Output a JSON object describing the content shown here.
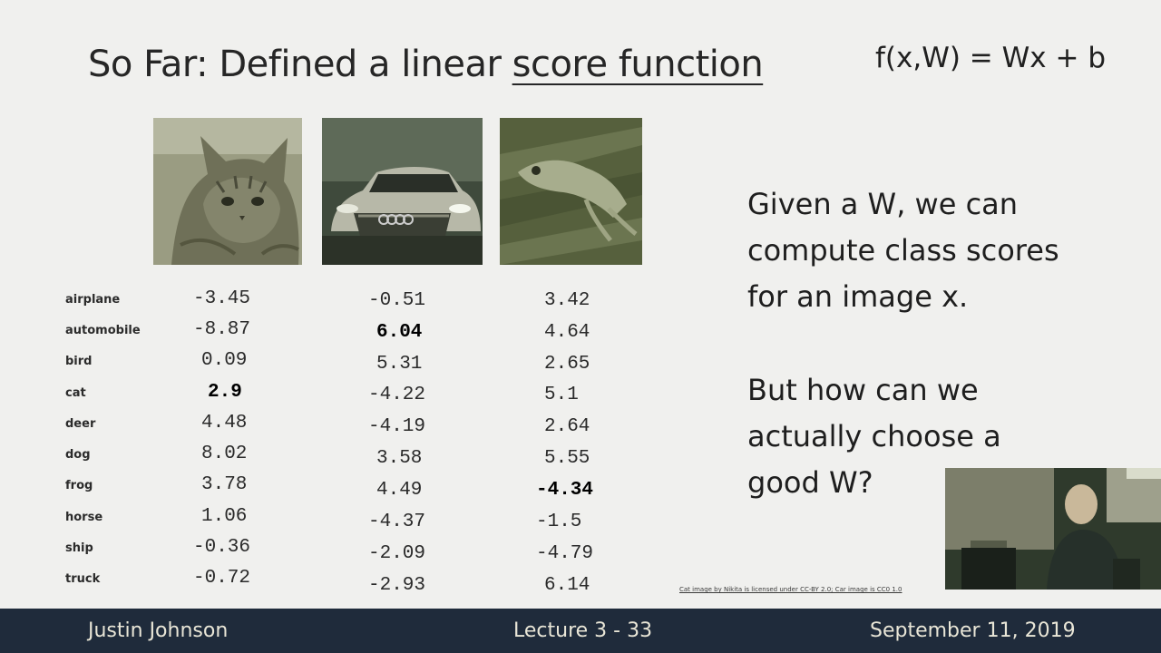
{
  "slide": {
    "title_prefix": "So Far: Defined a linear ",
    "title_emphasis": "score function",
    "formula": "f(x,W) = Wx + b"
  },
  "images": [
    {
      "name": "cat",
      "icon": "cat-photo"
    },
    {
      "name": "car",
      "icon": "car-photo"
    },
    {
      "name": "frog",
      "icon": "frog-photo"
    }
  ],
  "score_table": {
    "classes": [
      "airplane",
      "automobile",
      "bird",
      "cat",
      "deer",
      "dog",
      "frog",
      "horse",
      "ship",
      "truck"
    ],
    "cat_scores": [
      "-3.45",
      "-8.87",
      "0.09",
      "2.9",
      "4.48",
      "8.02",
      "3.78",
      "1.06",
      "-0.36",
      "-0.72"
    ],
    "car_scores": [
      "-0.51",
      "6.04",
      "5.31",
      "-4.22",
      "-4.19",
      "3.58",
      "4.49",
      "-4.37",
      "-2.09",
      "-2.93"
    ],
    "frog_scores": [
      "3.42",
      "4.64",
      "2.65",
      "5.1",
      "2.64",
      "5.55",
      "-4.34",
      "-1.5",
      "-4.79",
      "6.14"
    ],
    "highlighted": {
      "cat": 3,
      "car": 1,
      "frog": 6
    }
  },
  "side_text": {
    "para1": [
      "Given a W, we can",
      "compute class scores",
      "for an image x."
    ],
    "para2": [
      "But how can we",
      "actually choose a",
      "good W?"
    ]
  },
  "credit": "Cat image by Nikita is licensed under CC-BY 2.0; Car image is CC0 1.0",
  "footer": {
    "author": "Justin Johnson",
    "lecture": "Lecture 3 - 33",
    "date": "September 11, 2019"
  }
}
